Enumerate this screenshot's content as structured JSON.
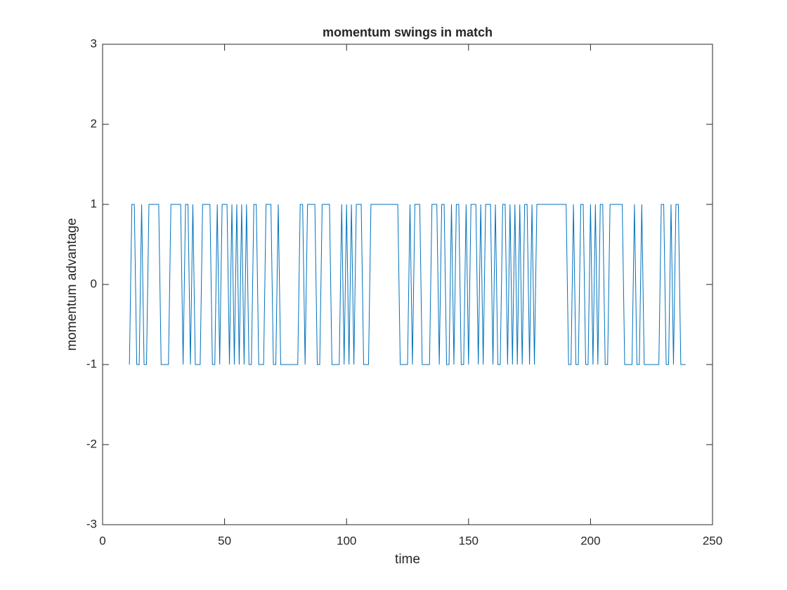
{
  "chart_data": {
    "type": "line",
    "title": "momentum swings in match",
    "xlabel": "time",
    "ylabel": "momentum advantage",
    "x": [
      11,
      12,
      13,
      14,
      15,
      16,
      17,
      18,
      19,
      20,
      21,
      22,
      23,
      24,
      25,
      26,
      27,
      28,
      29,
      30,
      31,
      32,
      33,
      34,
      35,
      36,
      37,
      38,
      39,
      40,
      41,
      42,
      43,
      44,
      45,
      46,
      47,
      48,
      49,
      50,
      51,
      52,
      53,
      54,
      55,
      56,
      57,
      58,
      59,
      60,
      61,
      62,
      63,
      64,
      65,
      66,
      67,
      68,
      69,
      70,
      71,
      72,
      73,
      74,
      75,
      76,
      77,
      78,
      79,
      80,
      81,
      82,
      83,
      84,
      85,
      86,
      87,
      88,
      89,
      90,
      91,
      92,
      93,
      94,
      95,
      96,
      97,
      98,
      99,
      100,
      101,
      102,
      103,
      104,
      105,
      106,
      107,
      108,
      109,
      110,
      111,
      112,
      113,
      114,
      115,
      116,
      117,
      118,
      119,
      120,
      121,
      122,
      123,
      124,
      125,
      126,
      127,
      128,
      129,
      130,
      131,
      132,
      133,
      134,
      135,
      136,
      137,
      138,
      139,
      140,
      141,
      142,
      143,
      144,
      145,
      146,
      147,
      148,
      149,
      150,
      151,
      152,
      153,
      154,
      155,
      156,
      157,
      158,
      159,
      160,
      161,
      162,
      163,
      164,
      165,
      166,
      167,
      168,
      169,
      170,
      171,
      172,
      173,
      174,
      175,
      176,
      177,
      178,
      179,
      180,
      181,
      182,
      183,
      184,
      185,
      186,
      187,
      188,
      189,
      190,
      191,
      192,
      193,
      194,
      195,
      196,
      197,
      198,
      199,
      200,
      201,
      202,
      203,
      204,
      205,
      206,
      207,
      208,
      209,
      210,
      211,
      212,
      213,
      214,
      215,
      216,
      217,
      218,
      219,
      220,
      221,
      222,
      223,
      224,
      225,
      226,
      227,
      228,
      229,
      230,
      231,
      232,
      233,
      234,
      235,
      236,
      237,
      238,
      239
    ],
    "series": [
      {
        "color": "#0072bd",
        "values": [
          -1,
          1,
          1,
          -1,
          -1,
          1,
          -1,
          -1,
          1,
          1,
          1,
          1,
          1,
          -1,
          -1,
          -1,
          -1,
          1,
          1,
          1,
          1,
          1,
          -1,
          1,
          1,
          -1,
          1,
          -1,
          -1,
          -1,
          1,
          1,
          1,
          1,
          -1,
          -1,
          1,
          -1,
          1,
          1,
          1,
          -1,
          1,
          -1,
          1,
          -1,
          1,
          -1,
          1,
          -1,
          -1,
          1,
          1,
          -1,
          -1,
          -1,
          1,
          1,
          1,
          -1,
          -1,
          1,
          -1,
          -1,
          -1,
          -1,
          -1,
          -1,
          -1,
          -1,
          1,
          1,
          -1,
          1,
          1,
          1,
          1,
          -1,
          -1,
          1,
          1,
          1,
          1,
          -1,
          -1,
          -1,
          -1,
          1,
          -1,
          1,
          -1,
          1,
          -1,
          1,
          1,
          1,
          -1,
          -1,
          -1,
          1,
          1,
          1,
          1,
          1,
          1,
          1,
          1,
          1,
          1,
          1,
          1,
          -1,
          -1,
          -1,
          -1,
          1,
          -1,
          1,
          1,
          1,
          -1,
          -1,
          -1,
          -1,
          1,
          1,
          1,
          -1,
          1,
          1,
          -1,
          -1,
          1,
          -1,
          1,
          1,
          -1,
          -1,
          1,
          -1,
          1,
          1,
          1,
          -1,
          1,
          -1,
          1,
          1,
          1,
          -1,
          1,
          -1,
          -1,
          1,
          1,
          -1,
          1,
          -1,
          1,
          -1,
          1,
          -1,
          1,
          1,
          -1,
          1,
          -1,
          1,
          1,
          1,
          1,
          1,
          1,
          1,
          1,
          1,
          1,
          1,
          1,
          1,
          -1,
          -1,
          1,
          -1,
          -1,
          1,
          1,
          -1,
          -1,
          1,
          -1,
          1,
          -1,
          1,
          1,
          -1,
          -1,
          1,
          1,
          1,
          1,
          1,
          1,
          -1,
          -1,
          -1,
          -1,
          1,
          -1,
          -1,
          1,
          -1,
          -1,
          -1,
          -1,
          -1,
          -1,
          -1,
          1,
          1,
          -1,
          -1,
          1,
          -1,
          1,
          1,
          -1,
          -1,
          -1
        ]
      }
    ],
    "xlim": [
      0,
      250
    ],
    "xticks": [
      0,
      50,
      100,
      150,
      200,
      250
    ],
    "ylim": [
      -3,
      3
    ],
    "yticks": [
      -3,
      -2,
      -1,
      0,
      1,
      2,
      3
    ],
    "grid": false
  }
}
